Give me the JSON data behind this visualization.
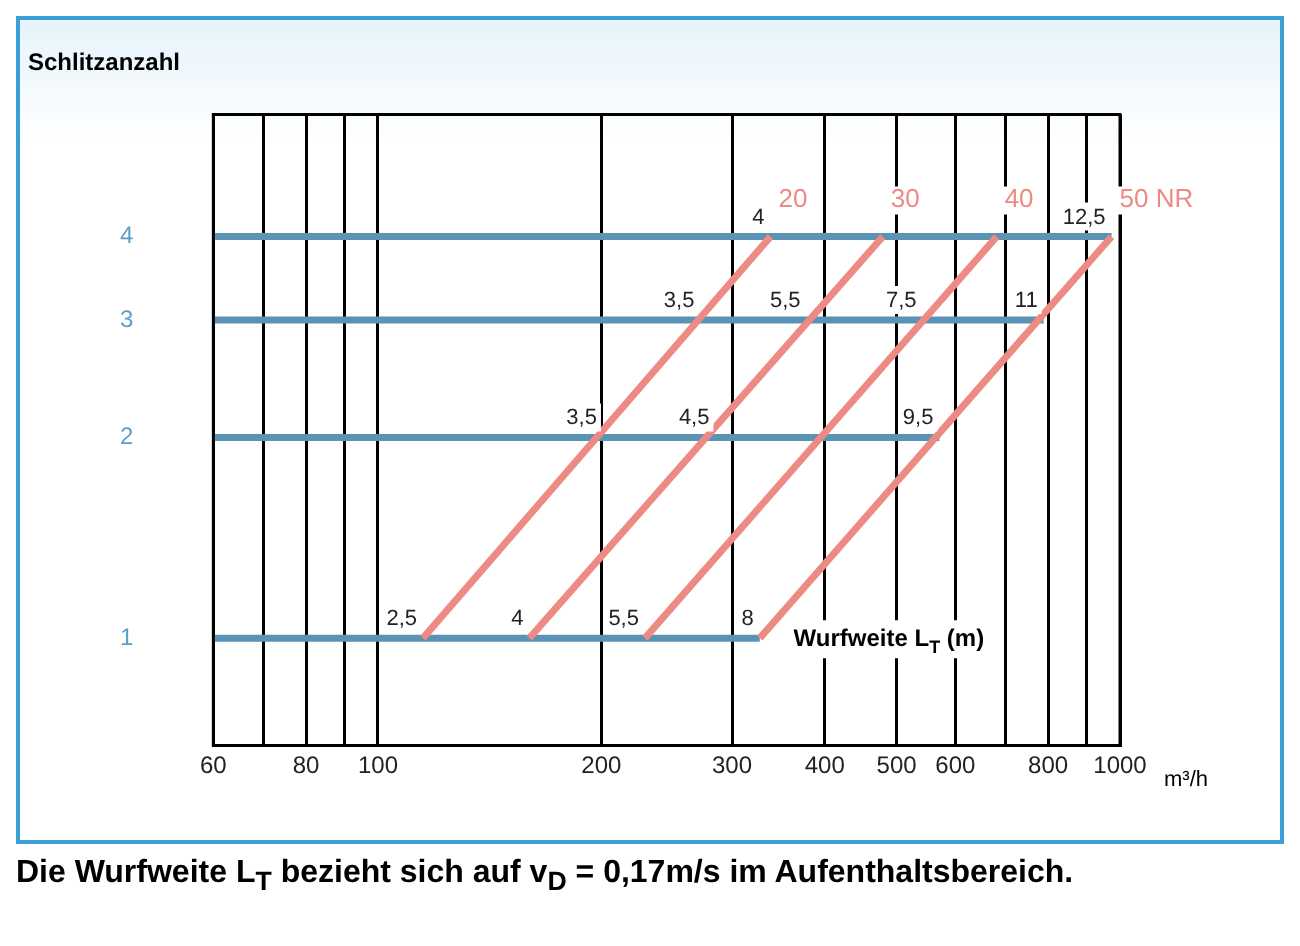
{
  "chart_data": {
    "type": "line",
    "ylabel": "Schlitzanzahl",
    "xlabel": "m³/h",
    "log": "xy",
    "grid": "x",
    "marker": "none",
    "line_style": "solid",
    "xlim": [
      60,
      1000
    ],
    "ylim": [
      0.69,
      6.1
    ],
    "xticks": [
      60,
      {
        "value": 70,
        "label": null
      },
      80,
      {
        "value": 90,
        "label": null
      },
      100,
      200,
      300,
      400,
      500,
      600,
      {
        "value": 700,
        "label": null
      },
      800,
      {
        "value": 900,
        "label": null
      },
      1000
    ],
    "yticks": [
      1,
      2,
      3,
      4
    ],
    "series": [
      {
        "name": "20",
        "color": "#ee8a84",
        "x": [
          115,
          338
        ],
        "values": [
          1,
          4
        ]
      },
      {
        "name": "30",
        "color": "#ee8a84",
        "x": [
          160,
          479
        ],
        "values": [
          1,
          4
        ]
      },
      {
        "name": "40",
        "color": "#ee8a84",
        "x": [
          229,
          682
        ],
        "values": [
          1,
          4
        ]
      },
      {
        "name": "50 NR",
        "color": "#ee8a84",
        "x": [
          327,
          974
        ],
        "values": [
          1,
          4
        ]
      },
      {
        "color": "#5b93b4",
        "x": [
          60,
          327
        ],
        "values": [
          1,
          1
        ]
      },
      {
        "color": "#5b93b4",
        "x": [
          60,
          571
        ],
        "values": [
          2,
          2
        ]
      },
      {
        "color": "#5b93b4",
        "x": [
          60,
          789
        ],
        "values": [
          3,
          3
        ]
      },
      {
        "color": "#5b93b4",
        "x": [
          60,
          974
        ],
        "values": [
          4,
          4
        ]
      }
    ],
    "annotations": [
      "Wurfweite L$_{T}$ (m)",
      "Die Wurfweite L$_{T}$ bezieht sich auf v$_{D}$ = 0,17m/s im Aufenthaltsbereich.",
      {
        "text": "2,5",
        "x": 115,
        "y": 1
      },
      {
        "text": "4",
        "x": 160,
        "y": 1
      },
      {
        "text": "5,5",
        "x": 229,
        "y": 1
      },
      {
        "text": "8",
        "x": 327,
        "y": 1
      },
      {
        "text": "3,5",
        "x": 201,
        "y": 2
      },
      {
        "text": "4,5",
        "x": 285,
        "y": 2
      },
      {
        "text": "9,5",
        "x": 571,
        "y": 2
      },
      {
        "text": "3,5",
        "x": 272,
        "y": 3
      },
      {
        "text": "5,5",
        "x": 378,
        "y": 3
      },
      {
        "text": "7,5",
        "x": 542,
        "y": 3
      },
      {
        "text": "11",
        "x": 789,
        "y": 3
      },
      {
        "text": "4",
        "x": 338,
        "y": 4
      },
      {
        "text": "12,5",
        "x": 974,
        "y": 4
      }
    ]
  }
}
